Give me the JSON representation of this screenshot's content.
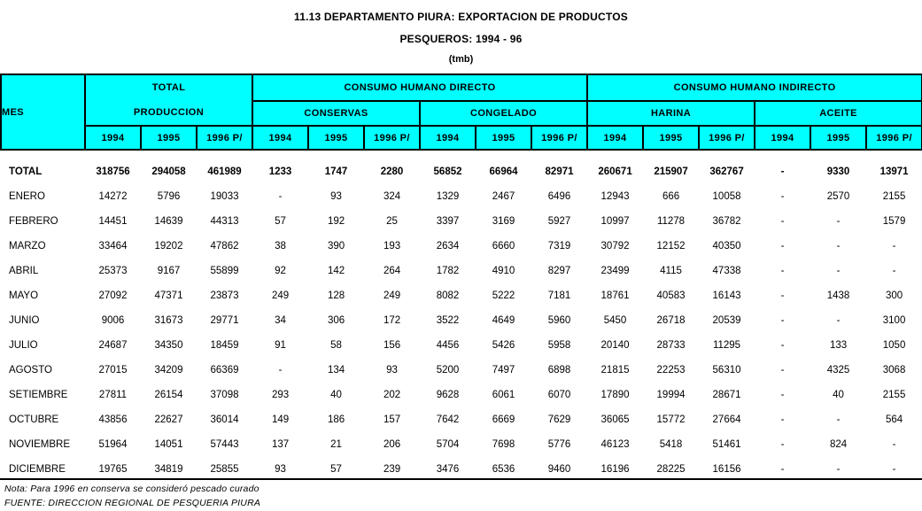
{
  "title": {
    "line1": "11.13  DEPARTAMENTO PIURA: EXPORTACION DE PRODUCTOS",
    "line2": "PESQUEROS: 1994 - 96",
    "line3": "(tmb)"
  },
  "colors": {
    "header_bg": "#00FFFF",
    "border": "#000000",
    "text": "#000000"
  },
  "table": {
    "col_mes": "MES",
    "group_total_line1": "TOTAL",
    "group_total_line2": "PRODUCCION",
    "group_consumo_directo": "CONSUMO HUMANO DIRECTO",
    "group_consumo_indirecto": "CONSUMO HUMANO INDIRECTO",
    "sub_conservas": "CONSERVAS",
    "sub_congelado": "CONGELADO",
    "sub_harina": "HARINA",
    "sub_aceite": "ACEITE",
    "years": [
      "1994",
      "1995",
      "1996 P/"
    ],
    "rows": [
      {
        "mes": "TOTAL",
        "bold": true,
        "values": [
          "318756",
          "294058",
          "461989",
          "1233",
          "1747",
          "2280",
          "56852",
          "66964",
          "82971",
          "260671",
          "215907",
          "362767",
          "-",
          "9330",
          "13971"
        ]
      },
      {
        "mes": "ENERO",
        "bold": false,
        "values": [
          "14272",
          "5796",
          "19033",
          "-",
          "93",
          "324",
          "1329",
          "2467",
          "6496",
          "12943",
          "666",
          "10058",
          "-",
          "2570",
          "2155"
        ]
      },
      {
        "mes": "FEBRERO",
        "bold": false,
        "values": [
          "14451",
          "14639",
          "44313",
          "57",
          "192",
          "25",
          "3397",
          "3169",
          "5927",
          "10997",
          "11278",
          "36782",
          "-",
          "-",
          "1579"
        ]
      },
      {
        "mes": "MARZO",
        "bold": false,
        "values": [
          "33464",
          "19202",
          "47862",
          "38",
          "390",
          "193",
          "2634",
          "6660",
          "7319",
          "30792",
          "12152",
          "40350",
          "-",
          "-",
          "-"
        ]
      },
      {
        "mes": "ABRIL",
        "bold": false,
        "values": [
          "25373",
          "9167",
          "55899",
          "92",
          "142",
          "264",
          "1782",
          "4910",
          "8297",
          "23499",
          "4115",
          "47338",
          "-",
          "-",
          "-"
        ]
      },
      {
        "mes": "MAYO",
        "bold": false,
        "values": [
          "27092",
          "47371",
          "23873",
          "249",
          "128",
          "249",
          "8082",
          "5222",
          "7181",
          "18761",
          "40583",
          "16143",
          "-",
          "1438",
          "300"
        ]
      },
      {
        "mes": "JUNIO",
        "bold": false,
        "values": [
          "9006",
          "31673",
          "29771",
          "34",
          "306",
          "172",
          "3522",
          "4649",
          "5960",
          "5450",
          "26718",
          "20539",
          "-",
          "-",
          "3100"
        ]
      },
      {
        "mes": "JULIO",
        "bold": false,
        "values": [
          "24687",
          "34350",
          "18459",
          "91",
          "58",
          "156",
          "4456",
          "5426",
          "5958",
          "20140",
          "28733",
          "11295",
          "-",
          "133",
          "1050"
        ]
      },
      {
        "mes": "AGOSTO",
        "bold": false,
        "values": [
          "27015",
          "34209",
          "66369",
          "-",
          "134",
          "93",
          "5200",
          "7497",
          "6898",
          "21815",
          "22253",
          "56310",
          "-",
          "4325",
          "3068"
        ]
      },
      {
        "mes": "SETIEMBRE",
        "bold": false,
        "values": [
          "27811",
          "26154",
          "37098",
          "293",
          "40",
          "202",
          "9628",
          "6061",
          "6070",
          "17890",
          "19994",
          "28671",
          "-",
          "40",
          "2155"
        ]
      },
      {
        "mes": "OCTUBRE",
        "bold": false,
        "values": [
          "43856",
          "22627",
          "36014",
          "149",
          "186",
          "157",
          "7642",
          "6669",
          "7629",
          "36065",
          "15772",
          "27664",
          "-",
          "-",
          "564"
        ]
      },
      {
        "mes": "NOVIEMBRE",
        "bold": false,
        "values": [
          "51964",
          "14051",
          "57443",
          "137",
          "21",
          "206",
          "5704",
          "7698",
          "5776",
          "46123",
          "5418",
          "51461",
          "-",
          "824",
          "-"
        ]
      },
      {
        "mes": "DICIEMBRE",
        "bold": false,
        "values": [
          "19765",
          "34819",
          "25855",
          "93",
          "57",
          "239",
          "3476",
          "6536",
          "9460",
          "16196",
          "28225",
          "16156",
          "-",
          "-",
          "-"
        ]
      }
    ]
  },
  "footer": {
    "nota": "Nota:  Para 1996 en conserva se consideró pescado curado",
    "fuente": "FUENTE: DIRECCION REGIONAL DE PESQUERIA PIURA"
  }
}
